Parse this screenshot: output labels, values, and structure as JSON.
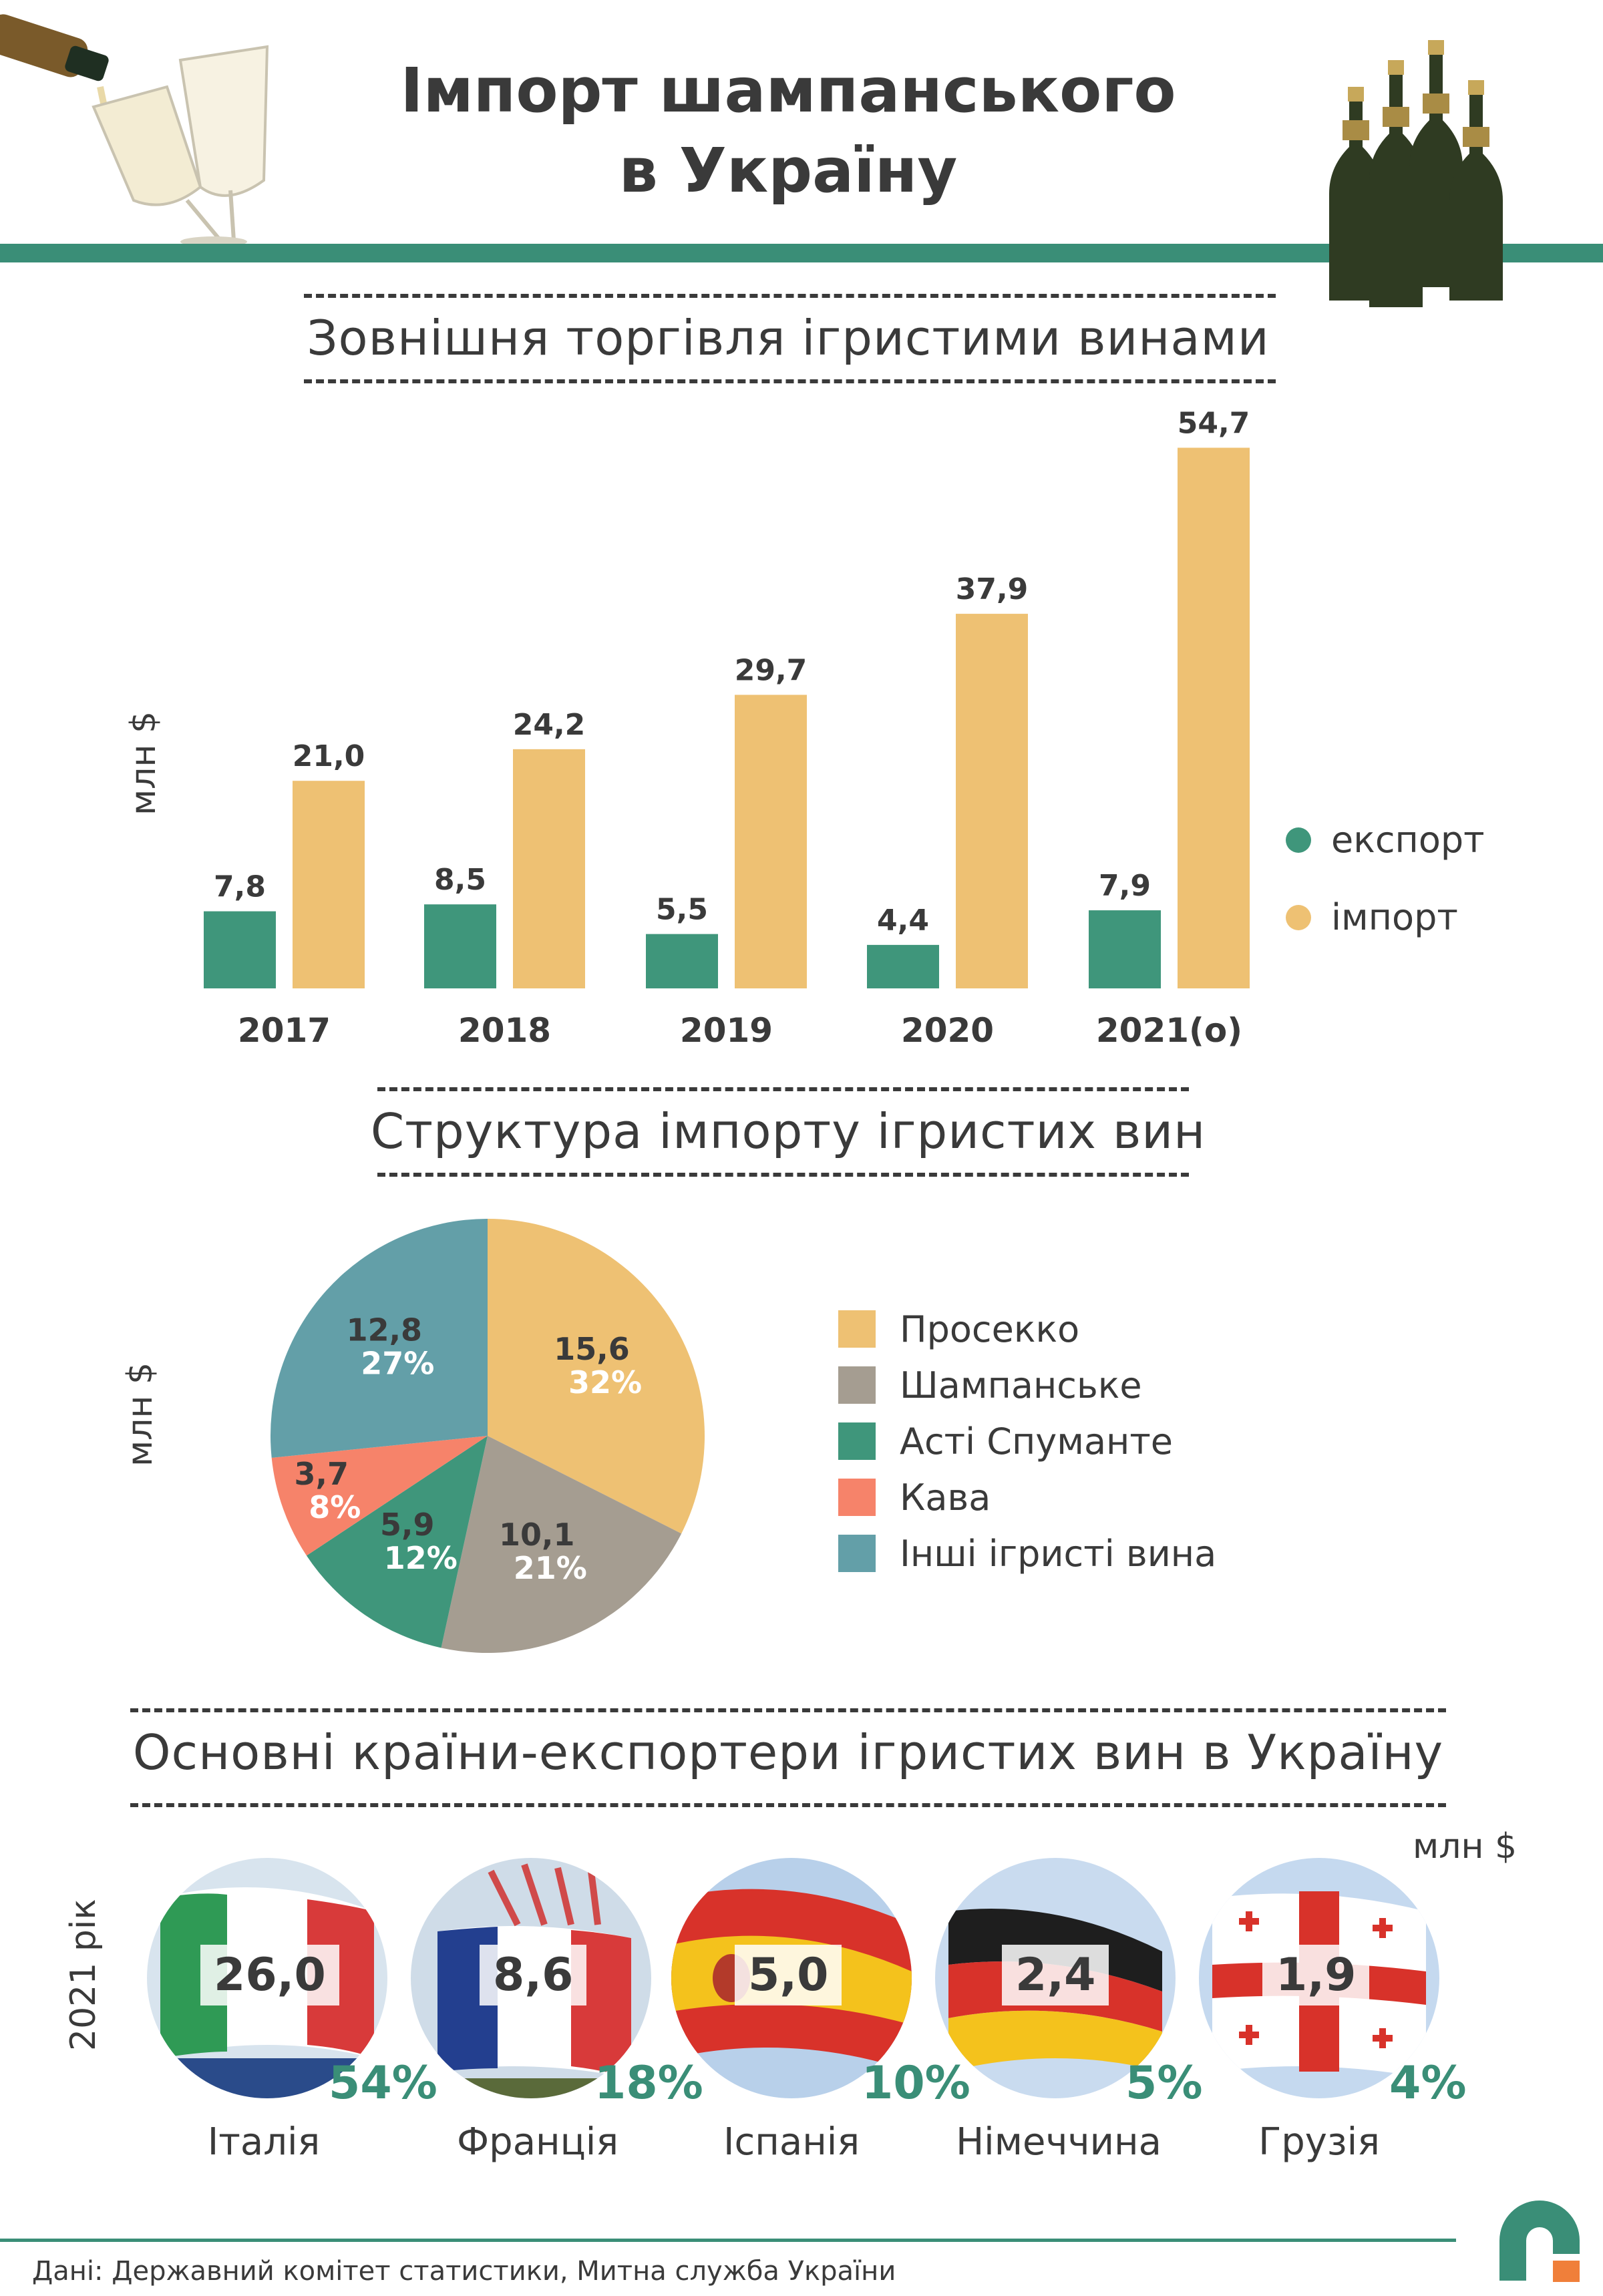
{
  "header": {
    "title_line1": "Імпорт шампанського",
    "title_line2": "в Україну"
  },
  "colors": {
    "export": "#3f967b",
    "import": "#eec173",
    "prosecco": "#eec173",
    "champagne": "#a59d91",
    "asti": "#3f967b",
    "cava": "#f6836a",
    "other": "#639fa8",
    "accent": "#3a8e77"
  },
  "section1": {
    "title": "Зовнішня торгівля ігристими винами",
    "unit": "млн $"
  },
  "section2": {
    "title": "Структура імпорту ігристих вин",
    "unit": "млн $"
  },
  "section3": {
    "title": "Основні країни-експортери ігристих вин в Україну",
    "unit": "млн $",
    "year_label": "2021 рік"
  },
  "chart_data": [
    {
      "type": "bar",
      "title": "Зовнішня торгівля ігристими винами",
      "ylabel": "млн $",
      "categories": [
        "2017",
        "2018",
        "2019",
        "2020",
        "2021(о)"
      ],
      "series": [
        {
          "name": "експорт",
          "values": [
            7.8,
            8.5,
            5.5,
            4.4,
            7.9
          ],
          "labels": [
            "7,8",
            "8,5",
            "5,5",
            "4,4",
            "7,9"
          ]
        },
        {
          "name": "імпорт",
          "values": [
            21.0,
            24.2,
            29.7,
            37.9,
            54.7
          ],
          "labels": [
            "21,0",
            "24,2",
            "29,7",
            "37,9",
            "54,7"
          ]
        }
      ],
      "ylim": [
        0,
        55
      ],
      "legend": "right"
    },
    {
      "type": "pie",
      "title": "Структура імпорту ігристих вин",
      "unit": "млн $",
      "slices": [
        {
          "name": "Просекко",
          "value": 15.6,
          "label": "15,6",
          "percent": "32%"
        },
        {
          "name": "Шампанське",
          "value": 10.1,
          "label": "10,1",
          "percent": "21%"
        },
        {
          "name": "Асті Спуманте",
          "value": 5.9,
          "label": "5,9",
          "percent": "12%"
        },
        {
          "name": "Кава",
          "value": 3.7,
          "label": "3,7",
          "percent": "8%"
        },
        {
          "name": "Інші ігристі вина",
          "value": 12.8,
          "label": "12,8",
          "percent": "27%"
        }
      ],
      "legend": "right"
    },
    {
      "type": "table",
      "title": "Основні країни-експортери ігристих вин в Україну",
      "unit": "млн $",
      "year": "2021 рік",
      "rows": [
        {
          "country": "Італія",
          "value": "26,0",
          "share": "54%"
        },
        {
          "country": "Франція",
          "value": "8,6",
          "share": "18%"
        },
        {
          "country": "Іспанія",
          "value": "5,0",
          "share": "10%"
        },
        {
          "country": "Німеччина",
          "value": "2,4",
          "share": "5%"
        },
        {
          "country": "Грузія",
          "value": "1,9",
          "share": "4%"
        }
      ]
    }
  ],
  "footer": {
    "source": "Дані: Державний комітет статистики, Митна служба України"
  }
}
